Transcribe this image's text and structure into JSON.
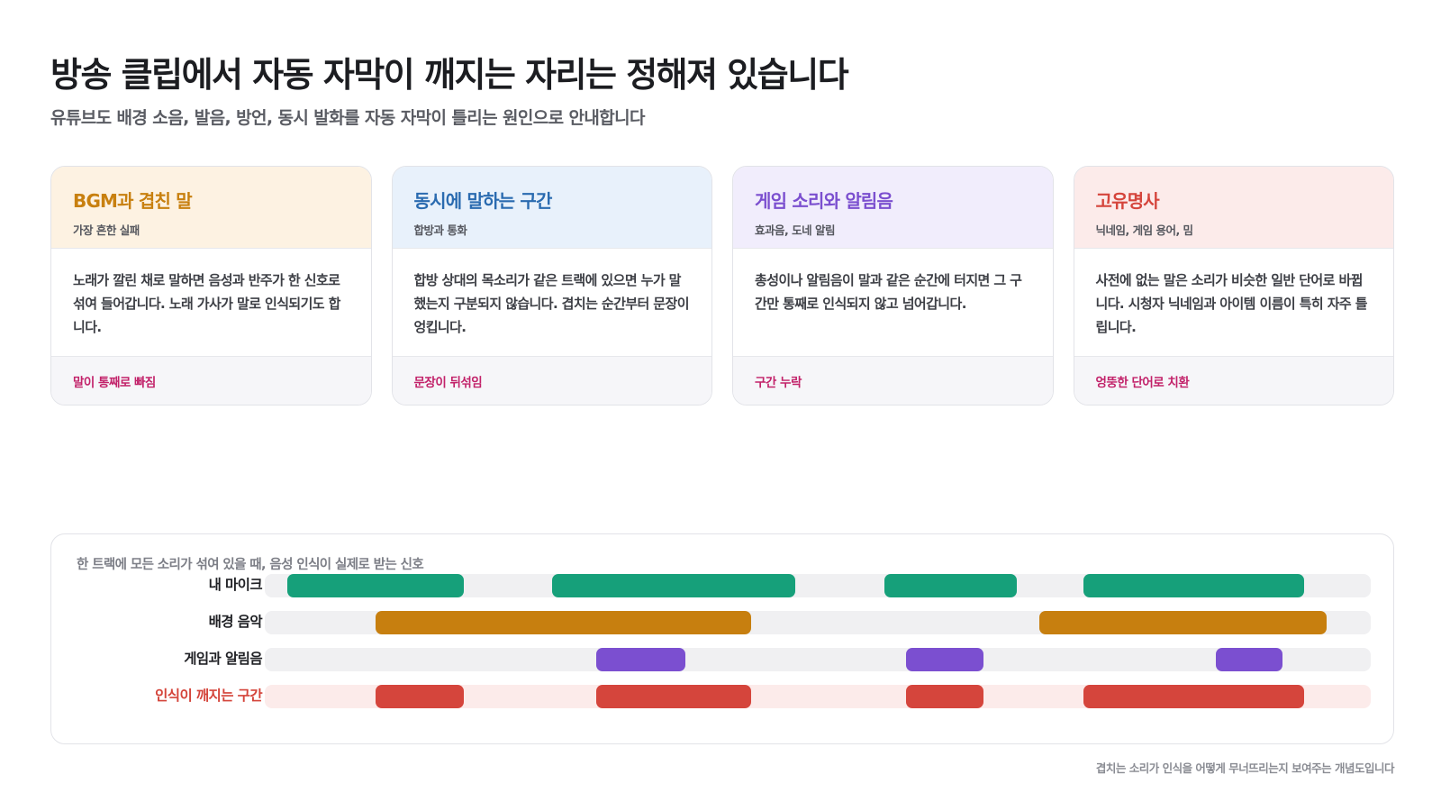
{
  "title": "방송 클립에서 자동 자막이 깨지는 자리는 정해져 있습니다",
  "subtitle": "유튜브도 배경 소음, 발음, 방언, 동시 발화를 자동 자막이 틀리는 원인으로 안내합니다",
  "cards": [
    {
      "title": "BGM과 겹친 말",
      "tag": "가장 흔한 실패",
      "body": "노래가 깔린 채로 말하면 음성과 반주가 한 신호로 섞여 들어갑니다. 노래 가사가 말로 인식되기도 합니다.",
      "footer": "말이 통째로 빠짐",
      "accent": "#c8800f",
      "head_bg": "#fdf2e2"
    },
    {
      "title": "동시에 말하는 구간",
      "tag": "합방과 통화",
      "body": "합방 상대의 목소리가 같은 트랙에 있으면 누가 말했는지 구분되지 않습니다. 겹치는 순간부터 문장이 엉킵니다.",
      "footer": "문장이 뒤섞임",
      "accent": "#2a6bb0",
      "head_bg": "#e8f1fb"
    },
    {
      "title": "게임 소리와 알림음",
      "tag": "효과음, 도네 알림",
      "body": "총성이나 알림음이 말과 같은 순간에 터지면 그 구간만 통째로 인식되지 않고 넘어갑니다.",
      "footer": "구간 누락",
      "accent": "#7b4fcf",
      "head_bg": "#f1edfc"
    },
    {
      "title": "고유명사",
      "tag": "닉네임, 게임 용어, 밈",
      "body": "사전에 없는 말은 소리가 비슷한 일반 단어로 바뀝니다. 시청자 닉네임과 아이템 이름이 특히 자주 틀립니다.",
      "footer": "엉뚱한 단어로 치환",
      "accent": "#d5453c",
      "head_bg": "#fcebea"
    }
  ],
  "timeline": {
    "caption": "한 트랙에 모든 소리가 섞여 있을 때, 음성 인식이 실제로 받는 신호",
    "tracks": [
      {
        "label": "내 마이크",
        "color": "#16a07a",
        "alert": false,
        "segments": [
          [
            0.02,
            0.18
          ],
          [
            0.26,
            0.48
          ],
          [
            0.56,
            0.68
          ],
          [
            0.74,
            0.94
          ]
        ]
      },
      {
        "label": "배경 음악",
        "color": "#c77f0f",
        "alert": false,
        "segments": [
          [
            0.1,
            0.44
          ],
          [
            0.7,
            0.96
          ]
        ]
      },
      {
        "label": "게임과 알림음",
        "color": "#7b4fd0",
        "alert": false,
        "segments": [
          [
            0.3,
            0.38
          ],
          [
            0.58,
            0.65
          ],
          [
            0.86,
            0.92
          ]
        ]
      },
      {
        "label": "인식이 깨지는 구간",
        "color": "#d5453c",
        "alert": true,
        "segments": [
          [
            0.1,
            0.18
          ],
          [
            0.3,
            0.44
          ],
          [
            0.58,
            0.65
          ],
          [
            0.74,
            0.94
          ]
        ]
      }
    ]
  },
  "footnote": "겹치는 소리가 인식을 어떻게 무너뜨리는지 보여주는 개념도입니다"
}
